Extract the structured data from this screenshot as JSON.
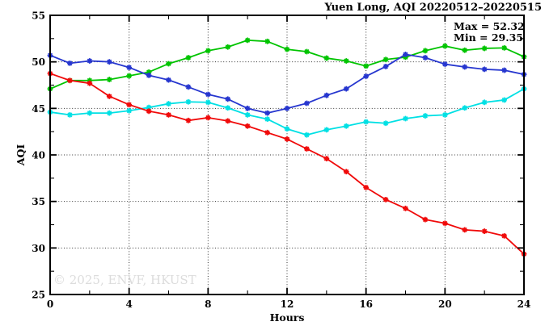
{
  "title": "Yuen Long, AQI 20220512–20220515",
  "watermark": "© 2025, ENVF, HKUST",
  "annotation": {
    "max_label": "Max = 52.32",
    "min_label": "Min = 29.35"
  },
  "chart_data": {
    "type": "line",
    "title": "Yuen Long, AQI 20220512–20220515",
    "xlabel": "Hours",
    "ylabel": "AQI",
    "xlim": [
      0,
      24
    ],
    "ylim": [
      25,
      55
    ],
    "x_major_ticks": [
      0,
      4,
      8,
      12,
      16,
      20,
      24
    ],
    "x_minor_step": 2,
    "y_major_ticks": [
      25,
      30,
      35,
      40,
      45,
      50,
      55
    ],
    "y_minor_step": 2.5,
    "grid": "dotted lines at interior major ticks, both axes",
    "legend_position": "none",
    "max_value": 52.32,
    "min_value": 29.35,
    "x": [
      0,
      1,
      2,
      3,
      4,
      5,
      6,
      7,
      8,
      9,
      10,
      11,
      12,
      13,
      14,
      15,
      16,
      17,
      18,
      19,
      20,
      21,
      22,
      23,
      24
    ],
    "series": [
      {
        "name": "series-green",
        "color": "#00c400",
        "values": [
          47.1,
          48.0,
          48.0,
          48.1,
          48.5,
          48.9,
          49.8,
          50.45,
          51.2,
          51.6,
          52.32,
          52.2,
          51.35,
          51.1,
          50.4,
          50.1,
          49.55,
          50.25,
          50.5,
          51.2,
          51.7,
          51.25,
          51.45,
          51.5,
          50.55
        ]
      },
      {
        "name": "series-cyan",
        "color": "#00e0e4",
        "values": [
          44.6,
          44.3,
          44.5,
          44.5,
          44.75,
          45.1,
          45.5,
          45.7,
          45.65,
          45.05,
          44.3,
          43.85,
          42.8,
          42.15,
          42.7,
          43.1,
          43.55,
          43.4,
          43.9,
          44.2,
          44.3,
          45.05,
          45.65,
          45.9,
          47.1
        ]
      },
      {
        "name": "series-red",
        "color": "#f00a0a",
        "values": [
          48.75,
          48.0,
          47.7,
          46.3,
          45.4,
          44.7,
          44.3,
          43.7,
          44.0,
          43.65,
          43.1,
          42.4,
          41.7,
          40.65,
          39.6,
          38.2,
          36.5,
          35.2,
          34.25,
          33.05,
          32.65,
          31.95,
          31.8,
          31.3,
          29.35
        ]
      },
      {
        "name": "series-blue",
        "color": "#2636cf",
        "values": [
          50.7,
          49.85,
          50.1,
          50.0,
          49.4,
          48.55,
          48.05,
          47.3,
          46.5,
          46.0,
          45.0,
          44.5,
          45.0,
          45.55,
          46.4,
          47.1,
          48.45,
          49.5,
          50.8,
          50.45,
          49.75,
          49.45,
          49.2,
          49.1,
          48.65
        ]
      }
    ]
  }
}
